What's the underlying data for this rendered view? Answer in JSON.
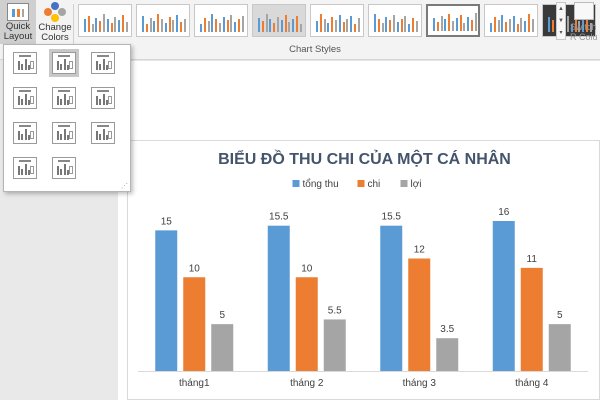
{
  "ribbon": {
    "quick_layout_label": "Quick Layout",
    "quick_layout_arrow": "▾",
    "change_colors_label": "Change Colors",
    "change_colors_arrow": "▾",
    "group_label": "Chart Styles",
    "switch_label": "Switch R Colu",
    "palette_colors": [
      "#4472c4",
      "#ed7d31",
      "#a5a5a5",
      "#ffc000"
    ],
    "styles_count": 9,
    "selected_style_index": 6,
    "gallery_scroll_up": "▲",
    "gallery_scroll_down": "▼",
    "gallery_more": "▾"
  },
  "quick_layout_menu": {
    "items": [
      "Layout 1",
      "Layout 2",
      "Layout 3",
      "Layout 4",
      "Layout 5",
      "Layout 6",
      "Layout 7",
      "Layout 8",
      "Layout 9",
      "Layout 10",
      "Layout 11"
    ],
    "selected_index": 1
  },
  "chart_data": {
    "type": "bar",
    "title": "BIỂU ĐỒ THU CHI CỦA MỘT CÁ NHÂN",
    "categories": [
      "tháng1",
      "tháng 2",
      "tháng 3",
      "tháng 4"
    ],
    "series": [
      {
        "name": "tổng thu",
        "values": [
          15,
          15.5,
          15.5,
          16
        ],
        "color": "#5b9bd5"
      },
      {
        "name": "chi",
        "values": [
          10,
          10,
          12,
          11
        ],
        "color": "#ed7d31"
      },
      {
        "name": "lợi",
        "values": [
          5,
          5.5,
          3.5,
          5
        ],
        "color": "#a5a5a5"
      }
    ],
    "ylim": [
      0,
      16
    ],
    "data_labels": true,
    "grid": false,
    "legend_position": "top",
    "title_color": "#44546a",
    "text_color": "#404040",
    "axis_color": "#d9d9d9"
  }
}
